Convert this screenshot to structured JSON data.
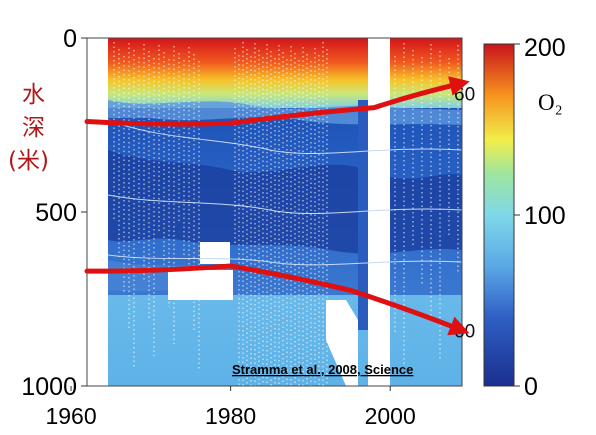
{
  "chart_data": {
    "type": "heatmap",
    "title": "",
    "ylabel": "水\n深\n(米)",
    "xlabel": "",
    "xlim": [
      1962,
      2009
    ],
    "ylim": [
      0,
      1000
    ],
    "y_inverted": true,
    "x_ticks": [
      1960,
      1980,
      2000
    ],
    "y_ticks": [
      0,
      500,
      1000
    ],
    "colorbar": {
      "label": "O₂",
      "range": [
        0,
        200
      ],
      "ticks": [
        0,
        100,
        200
      ]
    },
    "contour_labels": [
      {
        "text": "60",
        "year": 2009,
        "depth": 160
      },
      {
        "text": "60",
        "year": 2009,
        "depth": 840
      }
    ],
    "citation": "Stramma et al., 2008, Science",
    "annotation_arrows": [
      {
        "name": "upper-boundary",
        "points": [
          [
            1962,
            240
          ],
          [
            1980,
            245
          ],
          [
            1998,
            200
          ],
          [
            2009,
            130
          ]
        ]
      },
      {
        "name": "lower-boundary",
        "points": [
          [
            1962,
            670
          ],
          [
            1980,
            655
          ],
          [
            1995,
            725
          ],
          [
            2009,
            840
          ]
        ]
      }
    ],
    "colors": {
      "arrow": "#e01010",
      "ylabel": "#b01818"
    }
  }
}
